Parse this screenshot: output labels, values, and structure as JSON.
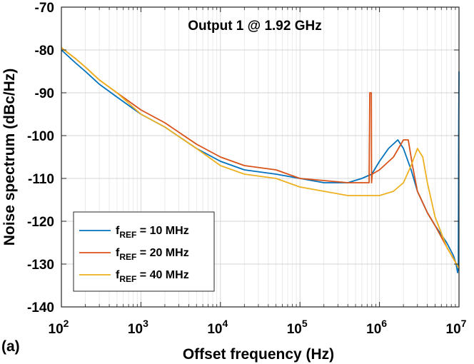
{
  "chart_data": {
    "type": "line",
    "title": "Output 1 @ 1.92 GHz",
    "panel_label": "(a)",
    "xlabel": "Offset frequency (Hz)",
    "ylabel": "Noise spectrum (dBc/Hz)",
    "xscale": "log",
    "xlim": [
      100,
      10000000
    ],
    "ylim": [
      -140,
      -70
    ],
    "x_ticks": [
      {
        "base": "10",
        "exp": "2"
      },
      {
        "base": "10",
        "exp": "3"
      },
      {
        "base": "10",
        "exp": "4"
      },
      {
        "base": "10",
        "exp": "5"
      },
      {
        "base": "10",
        "exp": "6"
      },
      {
        "base": "10",
        "exp": "7"
      }
    ],
    "y_ticks": [
      "-70",
      "-80",
      "-90",
      "-100",
      "-110",
      "-120",
      "-130",
      "-140"
    ],
    "grid": true,
    "legend_position": "bottom-left",
    "series": [
      {
        "label": {
          "main": "f",
          "sub": "REF",
          "rest": " = 10 MHz"
        },
        "color": "#0072BD",
        "x": [
          100,
          150,
          200,
          300,
          500,
          1000,
          2000,
          5000,
          10000,
          20000,
          50000,
          100000,
          200000,
          400000,
          600000,
          800000,
          1000000,
          1300000,
          1700000,
          2000000,
          2500000,
          3000000,
          4000000,
          5000000,
          7000000,
          8500000,
          9200000,
          9600000,
          9800000,
          9900000,
          10000000
        ],
        "y": [
          -80,
          -83,
          -85,
          -88,
          -91,
          -95,
          -98,
          -103,
          -106,
          -108,
          -109,
          -110,
          -111,
          -111,
          -110,
          -109,
          -106,
          -103,
          -101,
          -103,
          -108,
          -113,
          -118,
          -121,
          -125,
          -128,
          -130,
          -132,
          -131,
          -100,
          -85
        ]
      },
      {
        "label": {
          "main": "f",
          "sub": "REF",
          "rest": " = 20 MHz"
        },
        "color": "#D95319",
        "x": [
          100,
          150,
          200,
          300,
          500,
          1000,
          2000,
          5000,
          10000,
          20000,
          50000,
          100000,
          200000,
          400000,
          600000,
          740000,
          755000,
          760000,
          790000,
          795000,
          810000,
          1000000,
          1500000,
          2000000,
          2300000,
          2600000,
          3000000,
          4000000,
          5000000,
          7000000,
          10000000
        ],
        "y": [
          -79.5,
          -82,
          -84,
          -87,
          -90,
          -94,
          -97,
          -102,
          -105,
          -107,
          -108,
          -110,
          -110.5,
          -111,
          -111,
          -111,
          -90,
          -90,
          -90,
          -111,
          -109,
          -108,
          -105,
          -101,
          -101,
          -107,
          -113,
          -118,
          -121,
          -126,
          -131
        ]
      },
      {
        "label": {
          "main": "f",
          "sub": "REF",
          "rest": " = 40 MHz"
        },
        "color": "#EDB120",
        "x": [
          100,
          150,
          200,
          300,
          500,
          1000,
          2000,
          5000,
          10000,
          20000,
          50000,
          100000,
          200000,
          400000,
          600000,
          1000000,
          1500000,
          2000000,
          2500000,
          3000000,
          3500000,
          4000000,
          5000000,
          7000000,
          10000000
        ],
        "y": [
          -79.5,
          -82,
          -84,
          -87,
          -90,
          -95,
          -98,
          -103,
          -107,
          -109,
          -110,
          -112,
          -113,
          -114,
          -114,
          -114,
          -113,
          -111,
          -107,
          -103,
          -105,
          -111,
          -119,
          -126,
          -131
        ]
      }
    ]
  }
}
